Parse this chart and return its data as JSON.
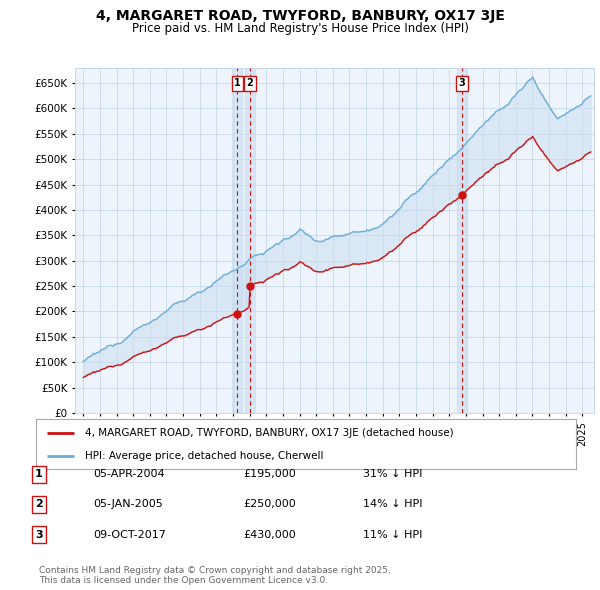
{
  "title": "4, MARGARET ROAD, TWYFORD, BANBURY, OX17 3JE",
  "subtitle": "Price paid vs. HM Land Registry's House Price Index (HPI)",
  "legend_line1": "4, MARGARET ROAD, TWYFORD, BANBURY, OX17 3JE (detached house)",
  "legend_line2": "HPI: Average price, detached house, Cherwell",
  "footnote": "Contains HM Land Registry data © Crown copyright and database right 2025.\nThis data is licensed under the Open Government Licence v3.0.",
  "transactions": [
    {
      "label": "1",
      "date": "05-APR-2004",
      "price": 195000,
      "x": 2004.26,
      "hpi_pct": "31% ↓ HPI"
    },
    {
      "label": "2",
      "date": "05-JAN-2005",
      "price": 250000,
      "x": 2005.01,
      "hpi_pct": "14% ↓ HPI"
    },
    {
      "label": "3",
      "date": "09-OCT-2017",
      "price": 430000,
      "x": 2017.77,
      "hpi_pct": "11% ↓ HPI"
    }
  ],
  "hpi_color": "#6baed6",
  "price_color": "#cc1111",
  "vline_color": "#cc1111",
  "fill_color": "#ddeeff",
  "ylim": [
    0,
    680000
  ],
  "xlim": [
    1994.5,
    2025.7
  ],
  "bg_color": "#ffffff",
  "plot_bg_color": "#eef4fb",
  "grid_color": "#c8d8e8"
}
